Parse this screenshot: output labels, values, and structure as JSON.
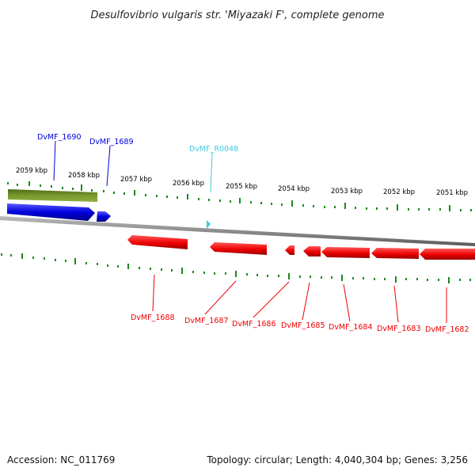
{
  "title": "Desulfovibrio vulgaris str. 'Miyazaki F', complete genome",
  "footer": {
    "accession": "Accession: NC_011769",
    "summary": "Topology: circular; Length: 4,040,304 bp; Genes: 3,256"
  },
  "colors": {
    "forward_gene": "#0000dd",
    "reverse_gene": "#ee0000",
    "rna_gene": "#44c8e0",
    "operon": "#6b8e23",
    "ticks": "#1a8a1a",
    "backbone": "#8c8c8c"
  },
  "kbp_labels": [
    "2059 kbp",
    "2058 kbp",
    "2057 kbp",
    "2056 kbp",
    "2055 kbp",
    "2054 kbp",
    "2053 kbp",
    "2052 kbp",
    "2051 kbp"
  ],
  "genes": [
    {
      "id": "DvMF_1690",
      "strand": "forward",
      "type": "gene"
    },
    {
      "id": "DvMF_1689",
      "strand": "forward",
      "type": "gene"
    },
    {
      "id": "DvMF_R0048",
      "strand": "forward",
      "type": "rna"
    },
    {
      "id": "DvMF_1688",
      "strand": "reverse",
      "type": "gene"
    },
    {
      "id": "DvMF_1687",
      "strand": "reverse",
      "type": "gene"
    },
    {
      "id": "DvMF_1686",
      "strand": "reverse",
      "type": "gene"
    },
    {
      "id": "DvMF_1685",
      "strand": "reverse",
      "type": "gene"
    },
    {
      "id": "DvMF_1684",
      "strand": "reverse",
      "type": "gene"
    },
    {
      "id": "DvMF_1683",
      "strand": "reverse",
      "type": "gene"
    },
    {
      "id": "DvMF_1682",
      "strand": "reverse",
      "type": "gene"
    }
  ]
}
